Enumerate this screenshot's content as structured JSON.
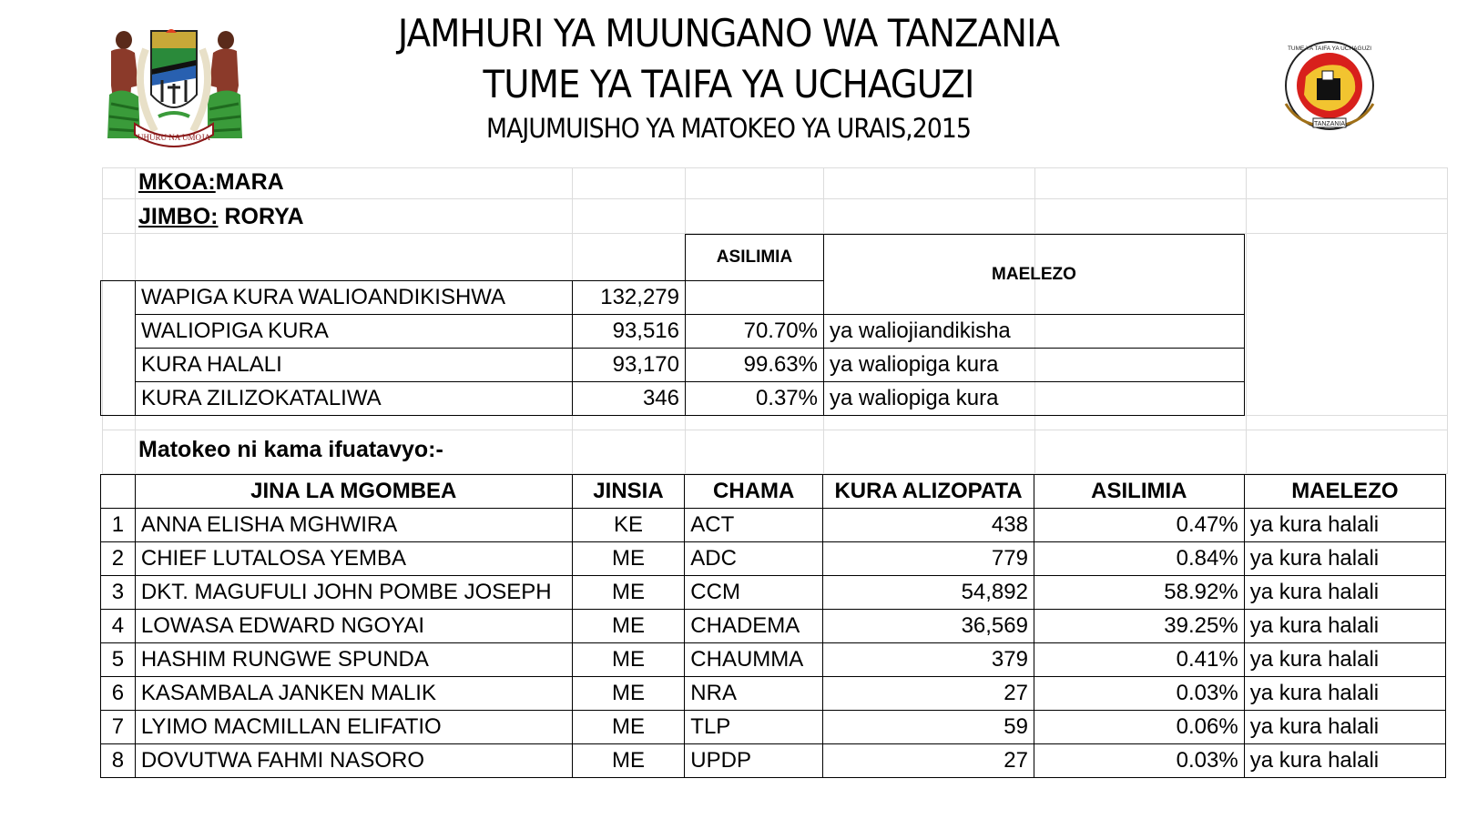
{
  "header": {
    "line1": "JAMHURI YA MUUNGANO WA TANZANIA",
    "line2": "TUME YA TAIFA YA UCHAGUZI",
    "line3": "MAJUMUISHO YA MATOKEO YA URAIS,2015",
    "emblem_icon": "tanzania-coat-of-arms-icon",
    "emblem_motto": "UHURU NA UMOJA",
    "seal_icon": "nec-seal-icon",
    "seal_text_top": "TUME YA TAIFA YA UCHAGUZI",
    "seal_text_bottom": "TANZANIA"
  },
  "location": {
    "mkoa_label": "MKOA:",
    "mkoa_value": "MARA",
    "jimbo_label": "JIMBO:",
    "jimbo_value": " RORYA"
  },
  "summary": {
    "asilimia_header": "ASILIMIA",
    "maelezo_header": "MAELEZO",
    "rows": [
      {
        "label": "WAPIGA KURA WALIOANDIKISHWA",
        "value": "132,279",
        "percent": "",
        "note": ""
      },
      {
        "label": "WALIOPIGA KURA",
        "value": "93,516",
        "percent": "70.70%",
        "note": "ya waliojiandikisha"
      },
      {
        "label": "KURA HALALI",
        "value": "93,170",
        "percent": "99.63%",
        "note": "ya waliopiga kura"
      },
      {
        "label": "KURA ZILIZOKATALIWA",
        "value": "346",
        "percent": "0.37%",
        "note": "ya waliopiga kura"
      }
    ]
  },
  "results_intro": "Matokeo ni kama ifuatavyo:-",
  "results": {
    "headers": [
      "",
      "JINA LA MGOMBEA",
      "JINSIA",
      "CHAMA",
      "KURA ALIZOPATA",
      "ASILIMIA",
      "MAELEZO"
    ],
    "rows": [
      {
        "no": "1",
        "name": "ANNA ELISHA MGHWIRA",
        "sex": "KE",
        "party": "ACT",
        "votes": "438",
        "percent": "0.47%",
        "note": "ya kura halali"
      },
      {
        "no": "2",
        "name": "CHIEF LUTALOSA YEMBA",
        "sex": "ME",
        "party": "ADC",
        "votes": "779",
        "percent": "0.84%",
        "note": "ya kura halali"
      },
      {
        "no": "3",
        "name": "DKT. MAGUFULI JOHN POMBE JOSEPH",
        "sex": "ME",
        "party": "CCM",
        "votes": "54,892",
        "percent": "58.92%",
        "note": "ya kura halali"
      },
      {
        "no": "4",
        "name": "LOWASA EDWARD NGOYAI",
        "sex": "ME",
        "party": "CHADEMA",
        "votes": "36,569",
        "percent": "39.25%",
        "note": "ya kura halali"
      },
      {
        "no": "5",
        "name": "HASHIM RUNGWE SPUNDA",
        "sex": "ME",
        "party": "CHAUMMA",
        "votes": "379",
        "percent": "0.41%",
        "note": "ya kura halali"
      },
      {
        "no": "6",
        "name": "KASAMBALA JANKEN MALIK",
        "sex": "ME",
        "party": "NRA",
        "votes": "27",
        "percent": "0.03%",
        "note": "ya kura halali"
      },
      {
        "no": "7",
        "name": "LYIMO MACMILLAN ELIFATIO",
        "sex": "ME",
        "party": "TLP",
        "votes": "59",
        "percent": "0.06%",
        "note": "ya kura halali"
      },
      {
        "no": "8",
        "name": "DOVUTWA FAHMI NASORO",
        "sex": "ME",
        "party": "UPDP",
        "votes": "27",
        "percent": "0.03%",
        "note": "ya kura halali"
      }
    ]
  }
}
